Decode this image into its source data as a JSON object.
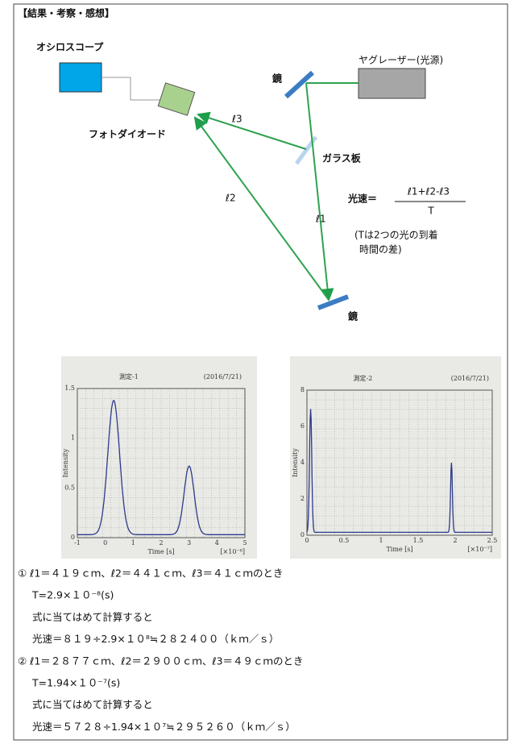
{
  "header": {
    "title": "【結果・考察・感想】"
  },
  "diagram": {
    "oscilloscope": "オシロスコープ",
    "photodiode": "フォトダイオード",
    "mirror_top": "鏡",
    "laser": "ヤグレーザー(光源)",
    "glass": "ガラス板",
    "l1": "ℓ1",
    "l2": "ℓ2",
    "l3": "ℓ3",
    "mirror_bottom": "鏡",
    "formula": {
      "lhs": "光速＝",
      "numerator": "ℓ1+ℓ2-ℓ3",
      "denominator": "T"
    },
    "note": [
      "(Tは2つの光の到着",
      "時間の差)"
    ]
  },
  "plots": [
    {
      "title": "測定-1",
      "date": "(2016/7/21)",
      "ylabel": "Intensity",
      "xlabel": "Time [s]",
      "xunit": "[×10⁻⁸]",
      "yticks": [
        "1.5",
        "1",
        "0.5",
        "0"
      ],
      "xticks": [
        "-1",
        "0",
        "1",
        "2",
        "3",
        "4",
        "5"
      ]
    },
    {
      "title": "測定-2",
      "date": "(2016/7/21)",
      "ylabel": "Intensity",
      "xlabel": "Time [s]",
      "xunit": "[×10⁻⁷]",
      "yticks": [
        "8",
        "6",
        "4",
        "2",
        "0"
      ],
      "xticks": [
        "0",
        "0.5",
        "1",
        "1.5",
        "2",
        "2.5"
      ]
    }
  ],
  "results": [
    "① ℓ1＝４１９ｃｍ、ℓ2＝４４１ｃｍ、ℓ3＝４１ｃｍのとき",
    "T=2.9×１０⁻⁸(s)",
    "式に当てはめて計算すると",
    "光速＝８１９÷2.9×１０⁸≒２８２４００（ｋｍ／ｓ）",
    "② ℓ1＝２８７７ｃｍ、ℓ2＝２９００ｃｍ、ℓ3＝４９ｃｍのとき",
    "T=1.94×１０⁻⁷(s)",
    "式に当てはめて計算すると",
    "光速＝５７２８÷1.94×１０⁷≒２９５２６０（ｋｍ／ｓ）"
  ]
}
